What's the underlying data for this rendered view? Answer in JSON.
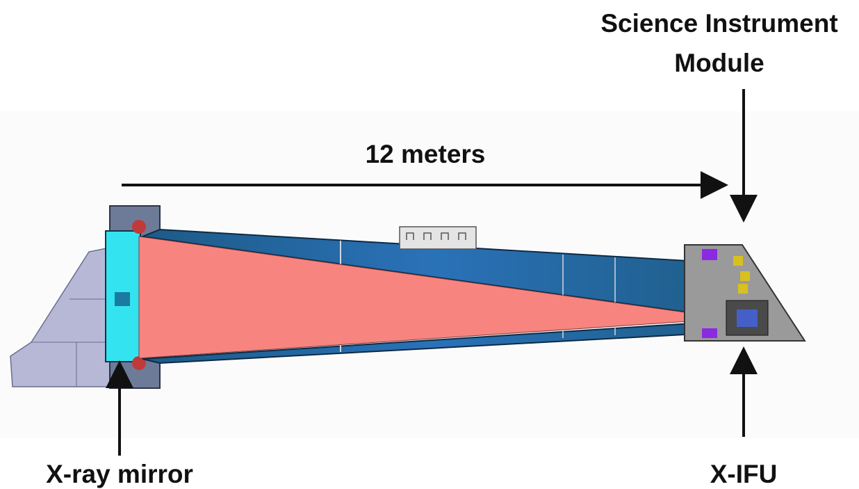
{
  "labels": {
    "science_instrument_module": [
      "Science Instrument",
      "Module"
    ],
    "length": "12 meters",
    "xray_mirror": "X-ray mirror",
    "xifu": "X-IFU"
  }
}
